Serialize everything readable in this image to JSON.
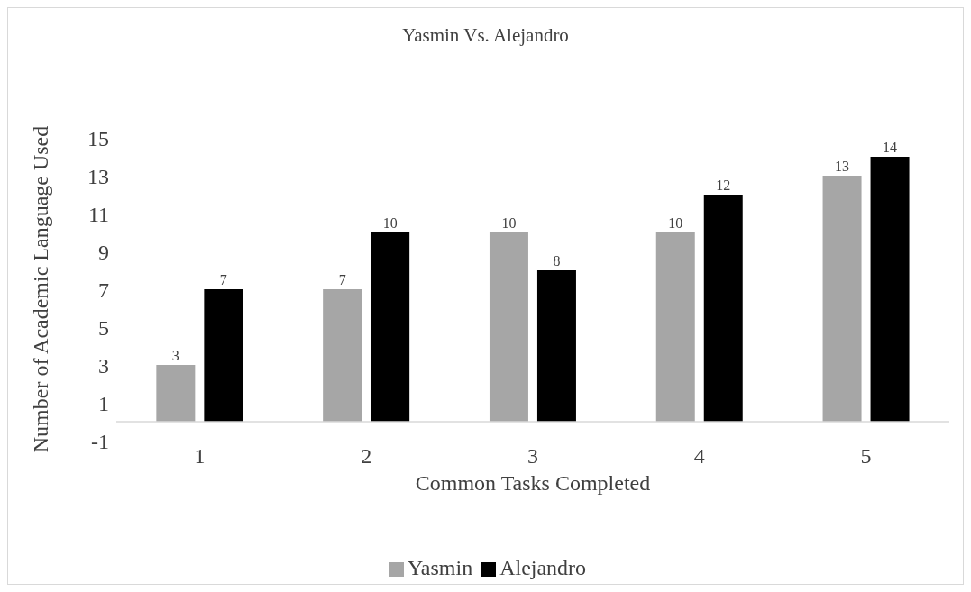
{
  "chart_data": {
    "type": "bar",
    "title": "Yasmin Vs. Alejandro",
    "xlabel": "Common Tasks Completed",
    "ylabel": "Number of Academic Language Used",
    "categories": [
      "1",
      "2",
      "3",
      "4",
      "5"
    ],
    "series": [
      {
        "name": "Yasmin",
        "color": "#a6a6a6",
        "values": [
          3,
          7,
          10,
          10,
          13
        ]
      },
      {
        "name": "Alejandro",
        "color": "#000000",
        "values": [
          7,
          10,
          8,
          12,
          14
        ]
      }
    ],
    "ylim": [
      -1,
      15
    ],
    "yticks": [
      -1,
      1,
      3,
      5,
      7,
      9,
      11,
      13,
      15
    ],
    "legend": "bottom",
    "data_labels": true
  }
}
